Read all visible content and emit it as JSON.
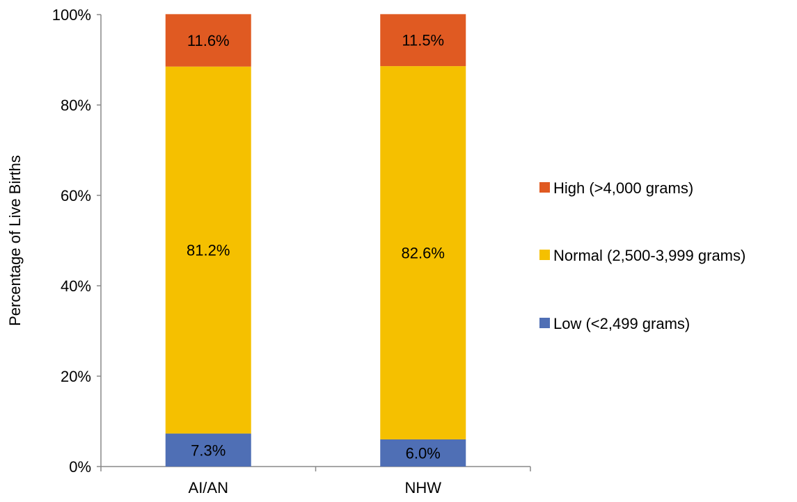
{
  "chart_data": {
    "type": "bar",
    "stacked": true,
    "title": "",
    "xlabel": "",
    "ylabel": "Percentage of Live Births",
    "ylim": [
      0,
      100
    ],
    "yticks": [
      "0%",
      "20%",
      "40%",
      "60%",
      "80%",
      "100%"
    ],
    "categories": [
      "AI/AN",
      "NHW"
    ],
    "series": [
      {
        "name": "Low (<2,499 grams)",
        "color": "#4F6FB5",
        "values": [
          7.3,
          6.0
        ],
        "labels": [
          "7.3%",
          "6.0%"
        ]
      },
      {
        "name": "Normal (2,500-3,999 grams)",
        "color": "#F5C000",
        "values": [
          81.2,
          82.6
        ],
        "labels": [
          "81.2%",
          "82.6%"
        ]
      },
      {
        "name": "High (>4,000 grams)",
        "color": "#E05A22",
        "values": [
          11.6,
          11.5
        ],
        "labels": [
          "11.6%",
          "11.5%"
        ]
      }
    ],
    "legend": {
      "position": "right",
      "order": [
        "High (>4,000 grams)",
        "Normal (2,500-3,999 grams)",
        "Low (<2,499 grams)"
      ]
    },
    "grid": false
  }
}
